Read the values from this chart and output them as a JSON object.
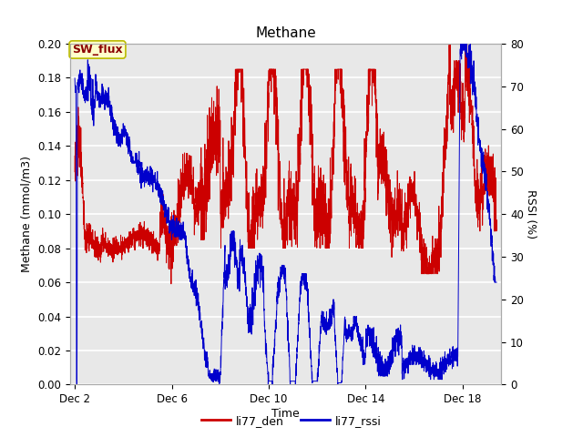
{
  "title": "Methane",
  "xlabel": "Time",
  "ylabel_left": "Methane (mmol/m3)",
  "ylabel_right": "RSSI (%)",
  "ylim_left": [
    0.0,
    0.2
  ],
  "ylim_right": [
    0,
    80
  ],
  "yticks_left": [
    0.0,
    0.02,
    0.04,
    0.06,
    0.08,
    0.1,
    0.12,
    0.14,
    0.16,
    0.18,
    0.2
  ],
  "yticks_right": [
    0,
    10,
    20,
    30,
    40,
    50,
    60,
    70,
    80
  ],
  "xtick_labels": [
    "Dec 2",
    "Dec 6",
    "Dec 10",
    "Dec 14",
    "Dec 18"
  ],
  "xtick_positions": [
    2,
    6,
    10,
    14,
    18
  ],
  "xlim": [
    1.8,
    19.6
  ],
  "plot_bg_color": "#e8e8e8",
  "grid_color": "#ffffff",
  "annotation_text": "SW_flux",
  "annotation_bg": "#ffffcc",
  "annotation_border": "#bbbb00",
  "line_red_color": "#cc0000",
  "line_blue_color": "#0000cc",
  "legend_entries": [
    "li77_den",
    "li77_rssi"
  ],
  "title_fontsize": 11,
  "label_fontsize": 9,
  "tick_fontsize": 8.5
}
